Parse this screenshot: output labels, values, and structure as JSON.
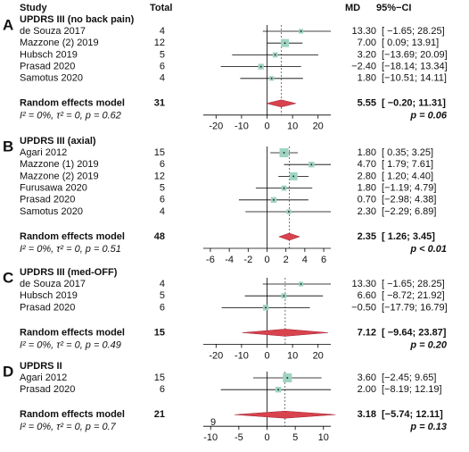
{
  "header": {
    "study": "Study",
    "total": "Total",
    "md": "MD",
    "ci": "95%−CI"
  },
  "chart_data": [
    {
      "type": "forest",
      "label": "A",
      "title": "UPDRS III (no back pain)",
      "xlim": [
        -25,
        25
      ],
      "xticks": [
        -20,
        -10,
        0,
        10,
        20
      ],
      "studies": [
        {
          "study": "de Souza 2017",
          "total": 4,
          "md": 13.3,
          "md_label": "13.30",
          "ci": [
            -1.65,
            28.25
          ],
          "ci_label": "[ −1.65; 28.25]"
        },
        {
          "study": "Mazzone (2) 2019",
          "total": 12,
          "md": 7.0,
          "md_label": "7.00",
          "ci": [
            0.09,
            13.91
          ],
          "ci_label": "[  0.09; 13.91]"
        },
        {
          "study": "Hubsch 2019",
          "total": 5,
          "md": 3.2,
          "md_label": "3.20",
          "ci": [
            -13.69,
            20.09
          ],
          "ci_label": "[−13.69; 20.09]"
        },
        {
          "study": "Prasad 2020",
          "total": 6,
          "md": -2.4,
          "md_label": "−2.40",
          "ci": [
            -18.14,
            13.34
          ],
          "ci_label": "[−18.14; 13.34]"
        },
        {
          "study": "Samotus 2020",
          "total": 4,
          "md": 1.8,
          "md_label": "1.80",
          "ci": [
            -10.51,
            14.11
          ],
          "ci_label": "[−10.51; 14.11]"
        }
      ],
      "model": {
        "name": "Random effects model",
        "total": 31,
        "md": 5.55,
        "md_label": "5.55",
        "ci": [
          -0.2,
          11.31
        ],
        "ci_label": "[ −0.20; 11.31]",
        "heterogeneity": "I² = 0%, τ² = 0, p = 0.62",
        "p_label": "p = 0.06"
      }
    },
    {
      "type": "forest",
      "label": "B",
      "title": "UPDRS III (axial)",
      "xlim": [
        -6.75,
        6.75
      ],
      "xticks": [
        -6,
        -4,
        -2,
        0,
        2,
        4,
        6
      ],
      "studies": [
        {
          "study": "Agari 2012",
          "total": 15,
          "md": 1.8,
          "md_label": "1.80",
          "ci": [
            0.35,
            3.25
          ],
          "ci_label": "[ 0.35; 3.25]"
        },
        {
          "study": "Mazzone (1) 2019",
          "total": 6,
          "md": 4.7,
          "md_label": "4.70",
          "ci": [
            1.79,
            7.61
          ],
          "ci_label": "[ 1.79; 7.61]"
        },
        {
          "study": "Mazzone (2) 2019",
          "total": 12,
          "md": 2.8,
          "md_label": "2.80",
          "ci": [
            1.2,
            4.4
          ],
          "ci_label": "[ 1.20; 4.40]"
        },
        {
          "study": "Furusawa 2020",
          "total": 5,
          "md": 1.8,
          "md_label": "1.80",
          "ci": [
            -1.19,
            4.79
          ],
          "ci_label": "[−1.19; 4.79]"
        },
        {
          "study": "Prasad 2020",
          "total": 6,
          "md": 0.7,
          "md_label": "0.70",
          "ci": [
            -2.98,
            4.38
          ],
          "ci_label": "[−2.98; 4.38]"
        },
        {
          "study": "Samotus 2020",
          "total": 4,
          "md": 2.3,
          "md_label": "2.30",
          "ci": [
            -2.29,
            6.89
          ],
          "ci_label": "[−2.29; 6.89]"
        }
      ],
      "model": {
        "name": "Random effects model",
        "total": 48,
        "md": 2.35,
        "md_label": "2.35",
        "ci": [
          1.26,
          3.45
        ],
        "ci_label": "[ 1.26; 3.45]",
        "heterogeneity": "I² = 0%, τ² = 0, p = 0.51",
        "p_label": "p < 0.01"
      }
    },
    {
      "type": "forest",
      "label": "C",
      "title": "UPDRS III (med-OFF)",
      "xlim": [
        -25,
        25
      ],
      "xticks": [
        -20,
        -10,
        0,
        10,
        20
      ],
      "studies": [
        {
          "study": "de Souza 2017",
          "total": 4,
          "md": 13.3,
          "md_label": "13.30",
          "ci": [
            -1.65,
            28.25
          ],
          "ci_label": "[ −1.65; 28.25]"
        },
        {
          "study": "Hubsch 2019",
          "total": 5,
          "md": 6.6,
          "md_label": "6.60",
          "ci": [
            -8.72,
            21.92
          ],
          "ci_label": "[ −8.72; 21.92]"
        },
        {
          "study": "Prasad 2020",
          "total": 6,
          "md": -0.5,
          "md_label": "−0.50",
          "ci": [
            -17.79,
            16.79
          ],
          "ci_label": "[−17.79; 16.79]"
        }
      ],
      "model": {
        "name": "Random effects model",
        "total": 15,
        "md": 7.12,
        "md_label": "7.12",
        "ci": [
          -9.64,
          23.87
        ],
        "ci_label": "[ −9.64; 23.87]",
        "heterogeneity": "I² = 0%, τ² = 0, p = 0.49",
        "p_label": "p = 0.20"
      }
    },
    {
      "type": "forest",
      "label": "D",
      "title": "UPDRS II",
      "xlim": [
        -11.3,
        11.3
      ],
      "xticks": [
        -10,
        -5,
        0,
        5,
        10
      ],
      "axis_note": "9",
      "studies": [
        {
          "study": "Agari 2012",
          "total": 15,
          "md": 3.6,
          "md_label": "3.60",
          "ci": [
            -2.45,
            9.65
          ],
          "ci_label": "[−2.45;  9.65]"
        },
        {
          "study": "Prasad 2020",
          "total": 6,
          "md": 2.0,
          "md_label": "2.00",
          "ci": [
            -8.19,
            12.19
          ],
          "ci_label": "[−8.19; 12.19]"
        }
      ],
      "model": {
        "name": "Random effects model",
        "total": 21,
        "md": 3.18,
        "md_label": "3.18",
        "ci": [
          -5.74,
          12.11
        ],
        "ci_label": "[−5.74; 12.11]",
        "heterogeneity": "I² = 0%, τ² = 0, p = 0.7",
        "p_label": "p = 0.13"
      }
    }
  ]
}
